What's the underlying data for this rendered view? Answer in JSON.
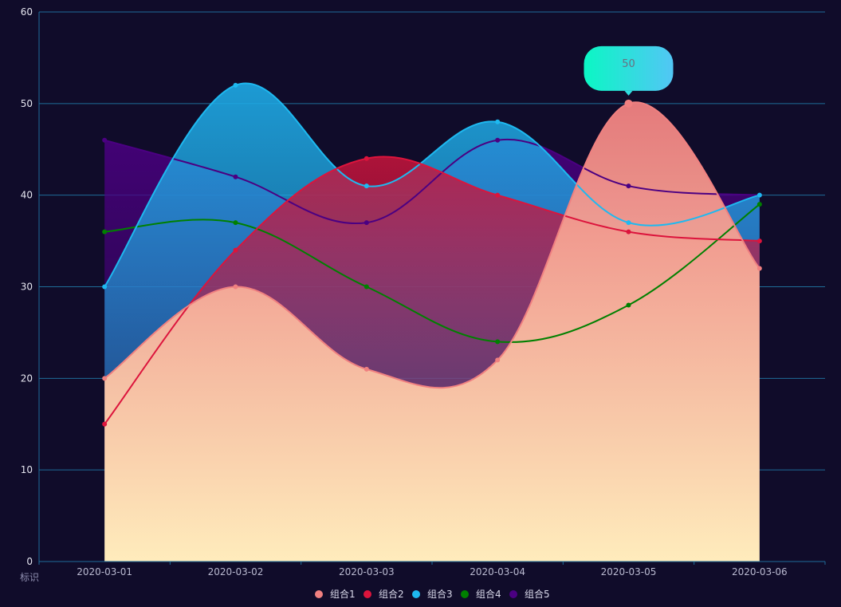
{
  "chart_data": {
    "type": "area",
    "x": [
      "2020-03-01",
      "2020-03-02",
      "2020-03-03",
      "2020-03-04",
      "2020-03-05",
      "2020-03-06"
    ],
    "xlabel": "标识",
    "ylabel": "",
    "ylim": [
      0,
      60
    ],
    "yticks": [
      "0",
      "10",
      "20",
      "30",
      "40",
      "50",
      "60"
    ],
    "grid": true,
    "legend_position": "bottom-center",
    "series": [
      {
        "name": "组合1",
        "values": [
          20,
          30,
          21,
          22,
          50,
          32
        ],
        "color": "#f08080",
        "area": true
      },
      {
        "name": "组合2",
        "values": [
          15,
          34,
          44,
          40,
          36,
          35
        ],
        "color": "#dc143c",
        "area": true
      },
      {
        "name": "组合3",
        "values": [
          30,
          52,
          41,
          48,
          37,
          40
        ],
        "color": "#1eb9f0",
        "area": true
      },
      {
        "name": "组合4",
        "values": [
          36,
          37,
          30,
          24,
          28,
          39
        ],
        "color": "#008000",
        "area": false
      },
      {
        "name": "组合5",
        "values": [
          46,
          42,
          37,
          46,
          41,
          40
        ],
        "color": "#4b0082",
        "area": true
      }
    ],
    "tooltip": {
      "series_index": 0,
      "point_index": 4,
      "value": "50"
    }
  }
}
